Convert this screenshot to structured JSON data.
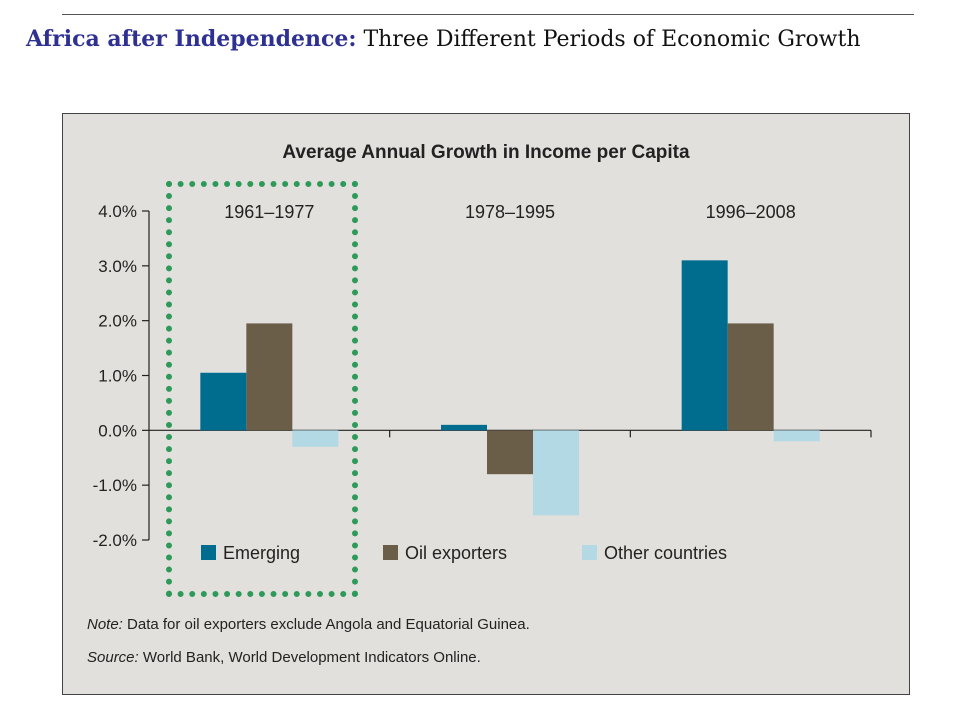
{
  "slide": {
    "title_bold": "Africa after Independence:",
    "title_rest": " Three Different Periods of Economic Growth",
    "highlight_color": "#2e9a5a"
  },
  "note": {
    "note_label": "Note:",
    "note_text": " Data for oil exporters exclude Angola and Equatorial Guinea.",
    "source_label": "Source:",
    "source_text": " World Bank, World Development Indicators Online."
  },
  "chart_data": {
    "type": "bar",
    "title": "Average Annual Growth in Income per Capita",
    "categories": [
      "1961–1977",
      "1978–1995",
      "1996–2008"
    ],
    "series": [
      {
        "name": "Emerging",
        "color": "#006c8e",
        "values": [
          1.05,
          0.1,
          3.1
        ]
      },
      {
        "name": "Oil exporters",
        "color": "#6b5e49",
        "values": [
          1.95,
          -0.8,
          1.95
        ]
      },
      {
        "name": "Other countries",
        "color": "#b3d9e4",
        "values": [
          -0.3,
          -1.55,
          -0.2
        ]
      }
    ],
    "ylim": [
      -2.0,
      4.0
    ],
    "yticks": [
      "4.0%",
      "3.0%",
      "2.0%",
      "1.0%",
      "0.0%",
      "-1.0%",
      "-2.0%"
    ],
    "ytick_values": [
      4,
      3,
      2,
      1,
      0,
      -1,
      -2
    ],
    "legend_position": "bottom",
    "grid": false
  }
}
